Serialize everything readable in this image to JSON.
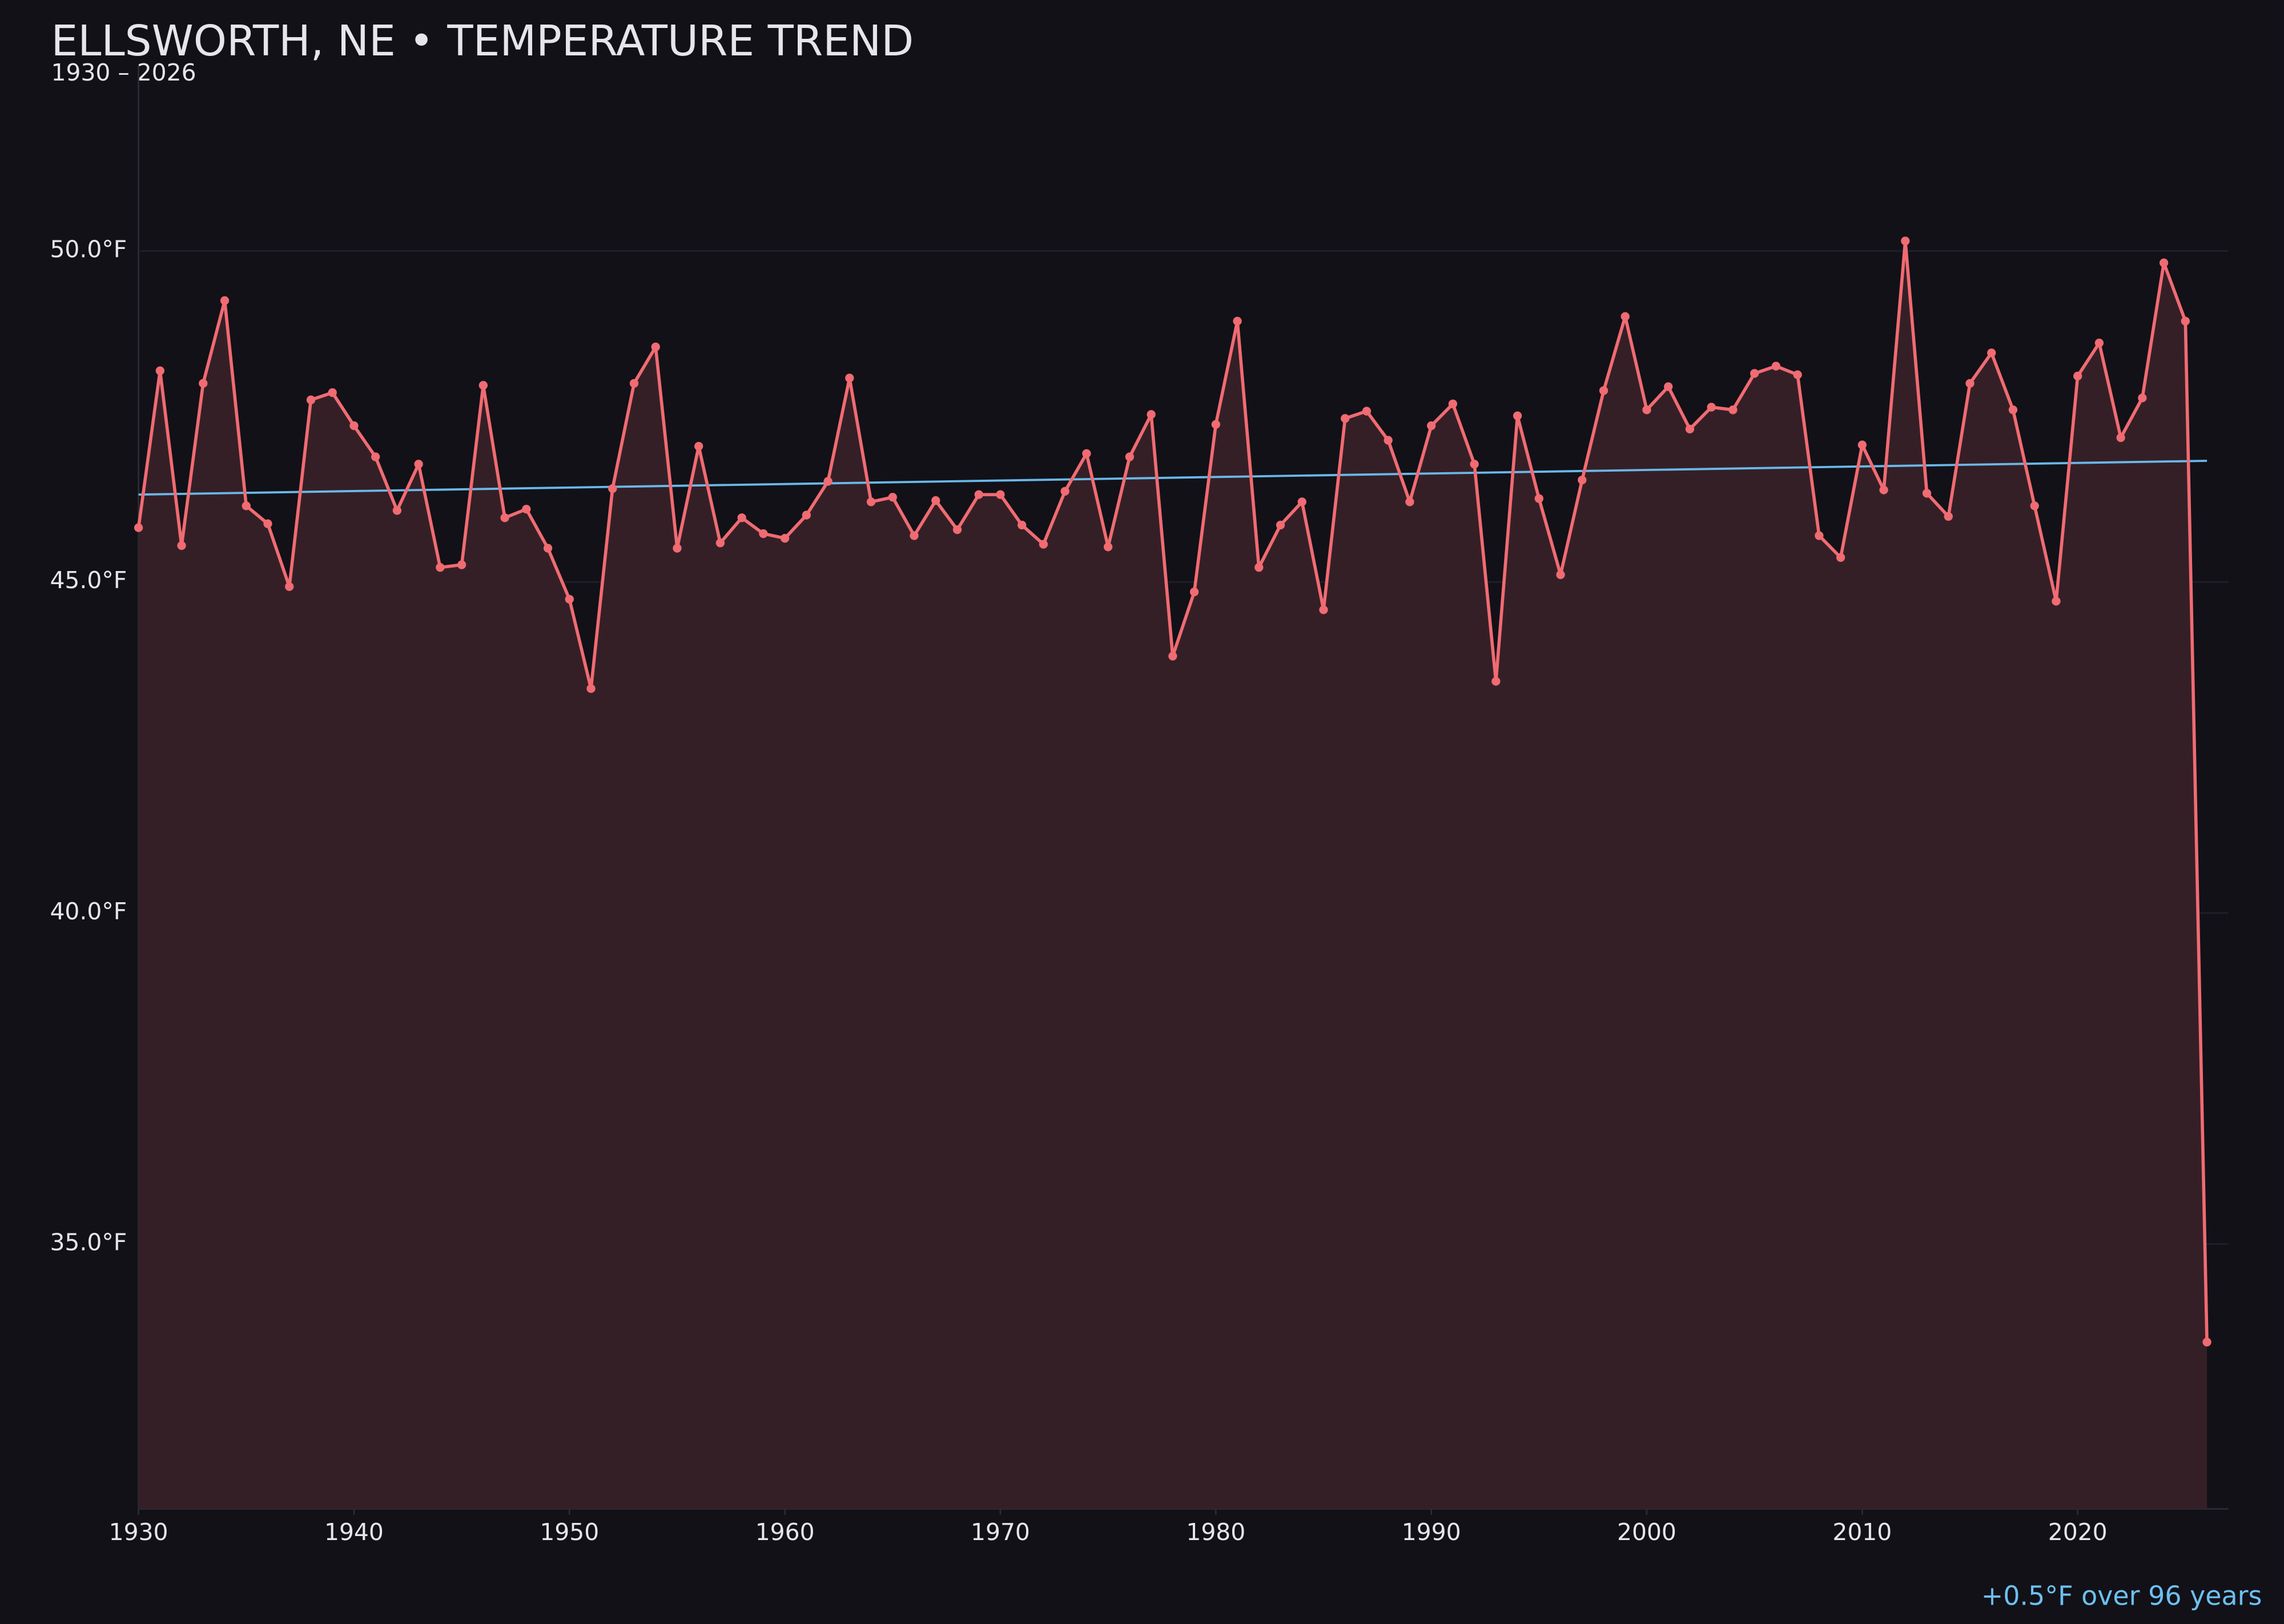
{
  "chart_data": {
    "type": "line",
    "title": "ELLSWORTH, NE • TEMPERATURE TREND",
    "subtitle": "1930 – 2026",
    "annotation": "+0.5°F over 96 years",
    "x": [
      1930,
      1931,
      1932,
      1933,
      1934,
      1935,
      1936,
      1937,
      1938,
      1939,
      1940,
      1941,
      1942,
      1943,
      1944,
      1945,
      1946,
      1947,
      1948,
      1949,
      1950,
      1951,
      1952,
      1953,
      1954,
      1955,
      1956,
      1957,
      1958,
      1959,
      1960,
      1961,
      1962,
      1963,
      1964,
      1965,
      1966,
      1967,
      1968,
      1969,
      1970,
      1971,
      1972,
      1973,
      1974,
      1975,
      1976,
      1977,
      1978,
      1979,
      1980,
      1981,
      1982,
      1983,
      1984,
      1985,
      1986,
      1987,
      1988,
      1989,
      1990,
      1991,
      1992,
      1993,
      1994,
      1995,
      1996,
      1997,
      1998,
      1999,
      2000,
      2001,
      2002,
      2003,
      2004,
      2005,
      2006,
      2007,
      2008,
      2009,
      2010,
      2011,
      2012,
      2013,
      2014,
      2015,
      2016,
      2017,
      2018,
      2019,
      2020,
      2021,
      2022,
      2023,
      2024,
      2025,
      2026
    ],
    "series": [
      {
        "color": "#f06b72",
        "fill": "#351f26",
        "values": [
          45.82,
          48.19,
          45.55,
          48.0,
          49.25,
          46.15,
          45.88,
          44.93,
          47.75,
          47.86,
          47.36,
          46.89,
          46.08,
          46.78,
          45.22,
          45.26,
          47.97,
          45.97,
          46.1,
          45.51,
          44.74,
          43.39,
          46.41,
          48.0,
          48.55,
          45.51,
          47.05,
          45.59,
          45.97,
          45.73,
          45.66,
          46.01,
          46.52,
          48.08,
          46.21,
          46.28,
          45.7,
          46.23,
          45.79,
          46.32,
          46.32,
          45.86,
          45.57,
          46.37,
          46.94,
          45.53,
          46.89,
          47.53,
          43.88,
          44.85,
          47.38,
          48.94,
          45.22,
          45.86,
          46.21,
          44.58,
          47.47,
          47.58,
          47.14,
          46.21,
          47.36,
          47.69,
          46.78,
          43.5,
          47.51,
          46.26,
          45.11,
          46.54,
          47.89,
          49.01,
          47.6,
          47.95,
          47.31,
          47.64,
          47.6,
          48.15,
          48.26,
          48.13,
          45.7,
          45.37,
          47.07,
          46.39,
          50.15,
          46.34,
          45.99,
          48.0,
          48.46,
          47.6,
          46.15,
          44.71,
          48.11,
          48.61,
          47.18,
          47.78,
          49.82,
          48.94,
          33.52
        ]
      }
    ],
    "trend": {
      "color": "#6ab8e8",
      "x": [
        1930,
        2026
      ],
      "values": [
        46.32,
        46.83
      ]
    },
    "xlim": [
      1930,
      2027
    ],
    "ylim": [
      31,
      52.8
    ],
    "xticks": [
      1930,
      1940,
      1950,
      1960,
      1970,
      1980,
      1990,
      2000,
      2010,
      2020
    ],
    "yticks": [
      {
        "value": 35,
        "label": "35.0°F"
      },
      {
        "value": 40,
        "label": "40.0°F"
      },
      {
        "value": 45,
        "label": "45.0°F"
      },
      {
        "value": 50,
        "label": "50.0°F"
      }
    ],
    "grid": true
  }
}
